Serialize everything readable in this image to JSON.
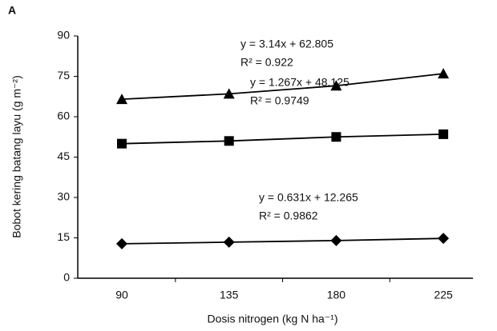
{
  "chart_data": {
    "type": "line",
    "panel_label": "A",
    "x_label": "Dosis nitrogen (kg N ha⁻¹)",
    "y_label": "Bobot kering batang layu (g m⁻²)",
    "categories": [
      "90",
      "135",
      "180",
      "225"
    ],
    "ylim": [
      0,
      90
    ],
    "yticks": [
      0,
      15,
      30,
      45,
      60,
      75,
      90
    ],
    "series": [
      {
        "marker": "triangle",
        "color": "#000000",
        "values": [
          66.5,
          68.5,
          71.5,
          76
        ]
      },
      {
        "marker": "square",
        "color": "#000000",
        "values": [
          50,
          51,
          52.5,
          53.5
        ]
      },
      {
        "marker": "diamond",
        "color": "#000000",
        "values": [
          12.8,
          13.4,
          14,
          14.8
        ]
      }
    ],
    "annotations": [
      [
        "y = 3.14x + 62.805",
        "R² = 0.922"
      ],
      [
        "y = 1.267x + 48.125",
        "R² = 0.9749"
      ],
      [
        "y = 0.631x + 12.265",
        "R² = 0.9862"
      ]
    ]
  }
}
